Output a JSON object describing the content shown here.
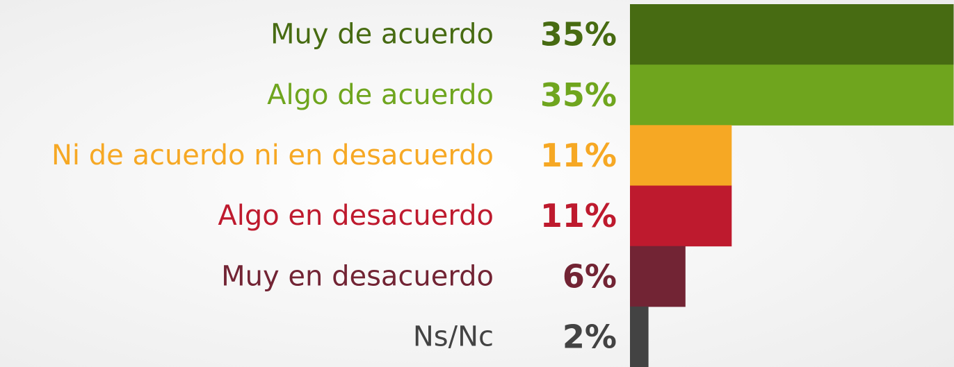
{
  "chart_data": {
    "type": "hbar",
    "categories": [
      "Muy de acuerdo",
      "Algo de acuerdo",
      "Ni de acuerdo ni en desacuerdo",
      "Algo en desacuerdo",
      "Muy en desacuerdo",
      "Ns/Nc"
    ],
    "values": [
      35,
      35,
      11,
      11,
      6,
      2
    ],
    "value_labels": [
      "35%",
      "35%",
      "11%",
      "11%",
      "6%",
      "2%"
    ],
    "colors": [
      "#476b12",
      "#6fa51e",
      "#f6a824",
      "#be1a2e",
      "#722434",
      "#434343"
    ]
  }
}
